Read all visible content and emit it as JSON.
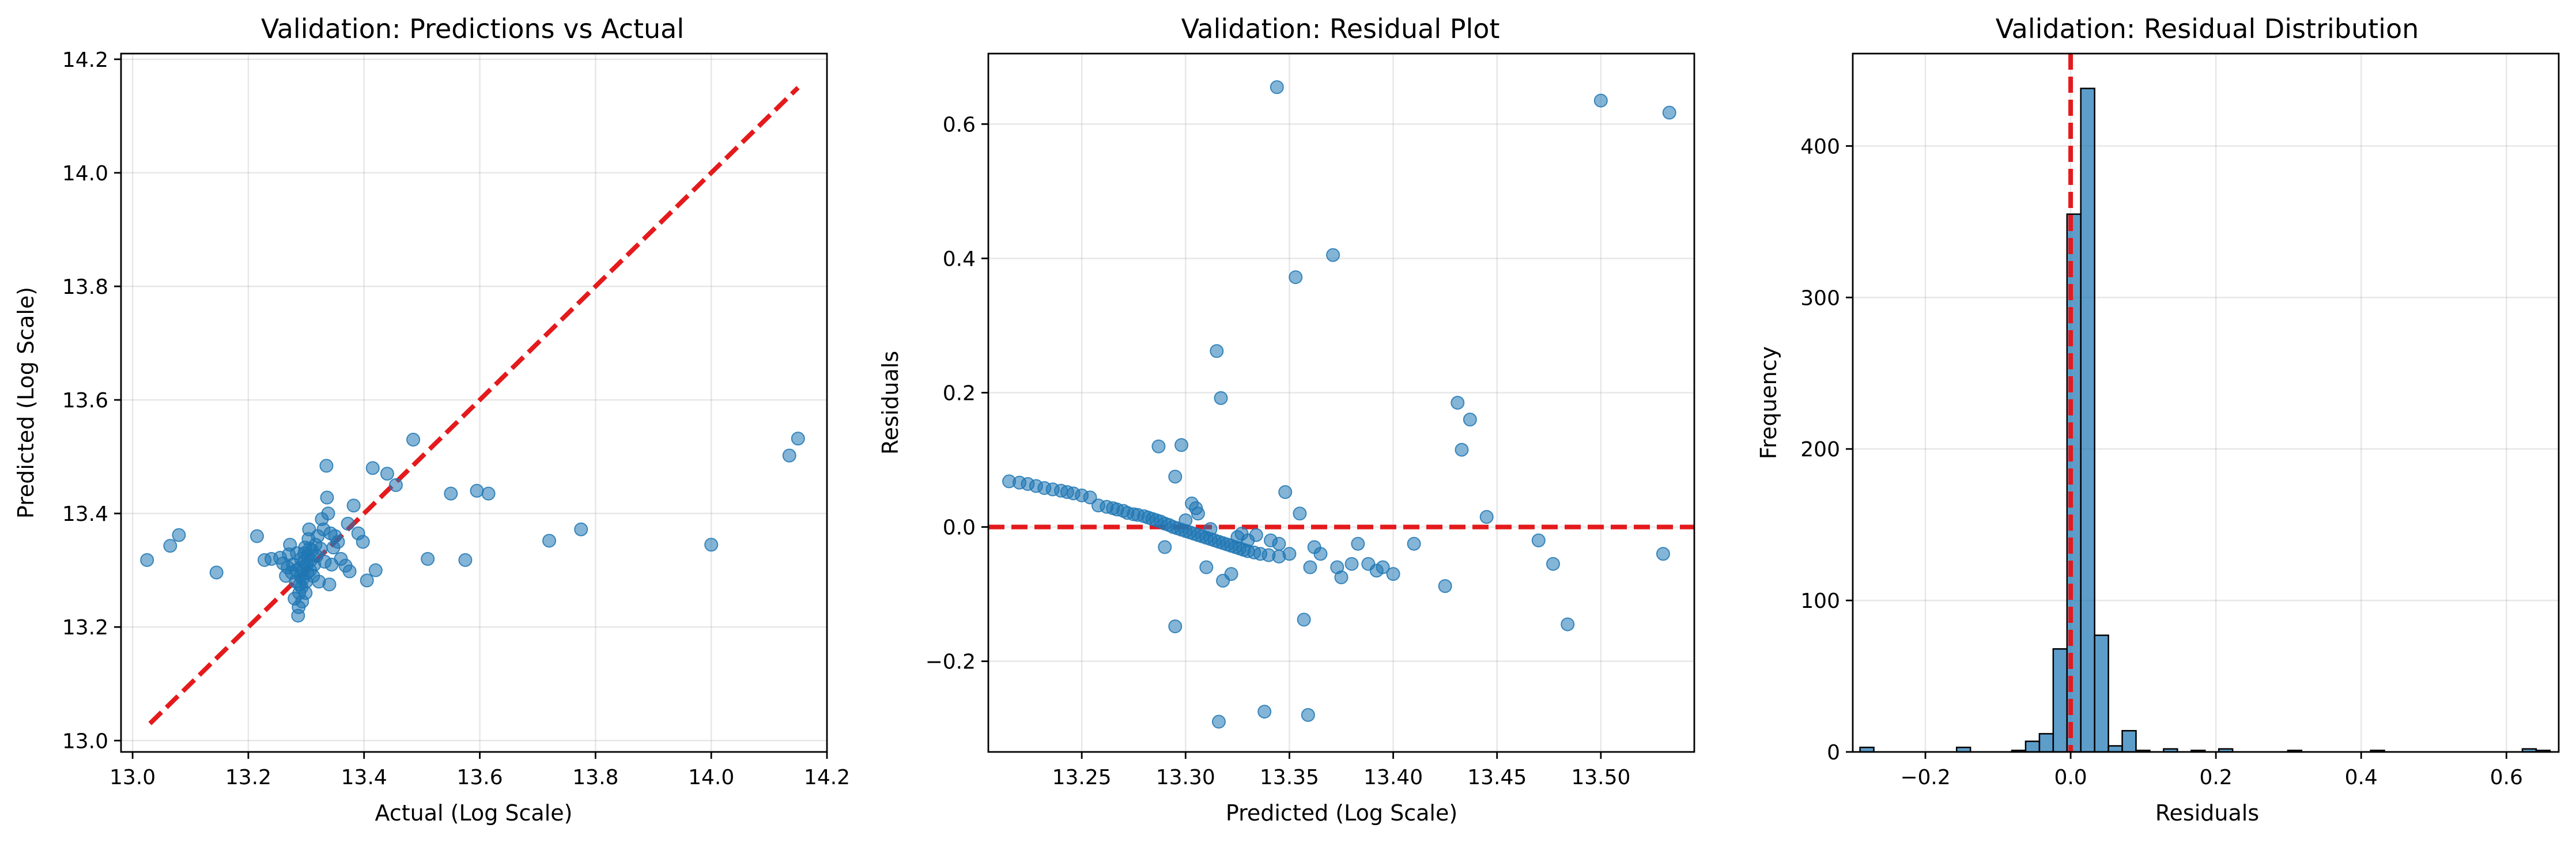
{
  "colors": {
    "points": "#1f77b4",
    "reference": "#e41a1c",
    "bars": "#1f77b4",
    "grid": "#b0b0b0"
  },
  "chart_data": [
    {
      "type": "scatter",
      "title": "Validation: Predictions vs Actual",
      "xlabel": "Actual (Log Scale)",
      "ylabel": "Predicted (Log Scale)",
      "xlim": [
        12.98,
        14.2
      ],
      "ylim": [
        12.98,
        14.21
      ],
      "xticks": [
        13.0,
        13.2,
        13.4,
        13.6,
        13.8,
        14.0,
        14.2
      ],
      "yticks": [
        13.0,
        13.2,
        13.4,
        13.6,
        13.8,
        14.0,
        14.2
      ],
      "tick_decimals": 1,
      "grid": true,
      "reference_line": {
        "style": "dashed",
        "from": [
          13.03,
          13.03
        ],
        "to": [
          14.15,
          14.15
        ]
      },
      "points": [
        [
          13.025,
          13.318
        ],
        [
          13.065,
          13.343
        ],
        [
          13.08,
          13.362
        ],
        [
          13.145,
          13.296
        ],
        [
          13.215,
          13.36
        ],
        [
          13.228,
          13.318
        ],
        [
          13.24,
          13.32
        ],
        [
          13.255,
          13.322
        ],
        [
          13.26,
          13.312
        ],
        [
          13.265,
          13.29
        ],
        [
          13.268,
          13.305
        ],
        [
          13.27,
          13.328
        ],
        [
          13.272,
          13.345
        ],
        [
          13.275,
          13.296
        ],
        [
          13.277,
          13.31
        ],
        [
          13.28,
          13.25
        ],
        [
          13.282,
          13.28
        ],
        [
          13.283,
          13.3
        ],
        [
          13.284,
          13.33
        ],
        [
          13.286,
          13.22
        ],
        [
          13.287,
          13.235
        ],
        [
          13.288,
          13.26
        ],
        [
          13.289,
          13.275
        ],
        [
          13.29,
          13.29
        ],
        [
          13.29,
          13.305
        ],
        [
          13.291,
          13.32
        ],
        [
          13.292,
          13.27
        ],
        [
          13.293,
          13.245
        ],
        [
          13.294,
          13.285
        ],
        [
          13.295,
          13.3
        ],
        [
          13.296,
          13.315
        ],
        [
          13.297,
          13.33
        ],
        [
          13.298,
          13.34
        ],
        [
          13.299,
          13.26
        ],
        [
          13.3,
          13.28
        ],
        [
          13.301,
          13.31
        ],
        [
          13.302,
          13.295
        ],
        [
          13.303,
          13.325
        ],
        [
          13.304,
          13.355
        ],
        [
          13.305,
          13.372
        ],
        [
          13.306,
          13.338
        ],
        [
          13.307,
          13.3
        ],
        [
          13.308,
          13.318
        ],
        [
          13.31,
          13.335
        ],
        [
          13.312,
          13.29
        ],
        [
          13.314,
          13.31
        ],
        [
          13.316,
          13.345
        ],
        [
          13.318,
          13.325
        ],
        [
          13.32,
          13.36
        ],
        [
          13.322,
          13.28
        ],
        [
          13.325,
          13.338
        ],
        [
          13.327,
          13.39
        ],
        [
          13.33,
          13.372
        ],
        [
          13.332,
          13.315
        ],
        [
          13.335,
          13.484
        ],
        [
          13.336,
          13.428
        ],
        [
          13.338,
          13.4
        ],
        [
          13.34,
          13.275
        ],
        [
          13.342,
          13.365
        ],
        [
          13.344,
          13.31
        ],
        [
          13.347,
          13.34
        ],
        [
          13.35,
          13.36
        ],
        [
          13.355,
          13.35
        ],
        [
          13.36,
          13.32
        ],
        [
          13.368,
          13.308
        ],
        [
          13.372,
          13.382
        ],
        [
          13.375,
          13.298
        ],
        [
          13.382,
          13.414
        ],
        [
          13.39,
          13.365
        ],
        [
          13.398,
          13.35
        ],
        [
          13.405,
          13.282
        ],
        [
          13.415,
          13.48
        ],
        [
          13.42,
          13.3
        ],
        [
          13.44,
          13.47
        ],
        [
          13.455,
          13.45
        ],
        [
          13.485,
          13.53
        ],
        [
          13.51,
          13.32
        ],
        [
          13.55,
          13.435
        ],
        [
          13.575,
          13.318
        ],
        [
          13.595,
          13.44
        ],
        [
          13.615,
          13.435
        ],
        [
          13.72,
          13.352
        ],
        [
          13.775,
          13.372
        ],
        [
          14.0,
          13.345
        ],
        [
          14.135,
          13.502
        ],
        [
          14.15,
          13.532
        ]
      ]
    },
    {
      "type": "scatter",
      "title": "Validation: Residual Plot",
      "xlabel": "Predicted (Log Scale)",
      "ylabel": "Residuals",
      "xlim": [
        13.205,
        13.545
      ],
      "ylim": [
        -0.335,
        0.705
      ],
      "xticks": [
        13.25,
        13.3,
        13.35,
        13.4,
        13.45,
        13.5
      ],
      "yticks": [
        -0.2,
        0.0,
        0.2,
        0.4,
        0.6
      ],
      "tick_decimals_x": 2,
      "tick_decimals_y": 1,
      "grid": true,
      "reference_line": {
        "style": "dashed",
        "y": 0.0
      },
      "points": [
        [
          13.215,
          0.068
        ],
        [
          13.22,
          0.066
        ],
        [
          13.224,
          0.064
        ],
        [
          13.228,
          0.061
        ],
        [
          13.232,
          0.058
        ],
        [
          13.236,
          0.056
        ],
        [
          13.24,
          0.054
        ],
        [
          13.243,
          0.052
        ],
        [
          13.246,
          0.05
        ],
        [
          13.25,
          0.047
        ],
        [
          13.254,
          0.044
        ],
        [
          13.258,
          0.032
        ],
        [
          13.262,
          0.03
        ],
        [
          13.265,
          0.028
        ],
        [
          13.267,
          0.026
        ],
        [
          13.27,
          0.024
        ],
        [
          13.272,
          0.021
        ],
        [
          13.275,
          0.019
        ],
        [
          13.277,
          0.018
        ],
        [
          13.28,
          0.016
        ],
        [
          13.282,
          0.014
        ],
        [
          13.284,
          0.012
        ],
        [
          13.286,
          0.01
        ],
        [
          13.288,
          0.008
        ],
        [
          13.29,
          0.005
        ],
        [
          13.292,
          0.003
        ],
        [
          13.294,
          0.0
        ],
        [
          13.296,
          -0.002
        ],
        [
          13.298,
          -0.004
        ],
        [
          13.3,
          -0.006
        ],
        [
          13.302,
          -0.008
        ],
        [
          13.304,
          -0.01
        ],
        [
          13.306,
          -0.012
        ],
        [
          13.308,
          -0.014
        ],
        [
          13.31,
          -0.016
        ],
        [
          13.312,
          -0.018
        ],
        [
          13.314,
          -0.02
        ],
        [
          13.316,
          -0.022
        ],
        [
          13.318,
          -0.024
        ],
        [
          13.32,
          -0.026
        ],
        [
          13.322,
          -0.028
        ],
        [
          13.324,
          -0.03
        ],
        [
          13.326,
          -0.032
        ],
        [
          13.328,
          -0.034
        ],
        [
          13.33,
          -0.036
        ],
        [
          13.333,
          -0.038
        ],
        [
          13.336,
          -0.04
        ],
        [
          13.34,
          -0.042
        ],
        [
          13.345,
          -0.044
        ],
        [
          13.35,
          -0.04
        ],
        [
          13.287,
          0.12
        ],
        [
          13.295,
          0.075
        ],
        [
          13.298,
          0.122
        ],
        [
          13.303,
          0.035
        ],
        [
          13.305,
          0.028
        ],
        [
          13.31,
          -0.06
        ],
        [
          13.315,
          0.262
        ],
        [
          13.317,
          0.192
        ],
        [
          13.29,
          -0.03
        ],
        [
          13.295,
          -0.148
        ],
        [
          13.316,
          -0.29
        ],
        [
          13.318,
          -0.08
        ],
        [
          13.322,
          -0.07
        ],
        [
          13.327,
          -0.01
        ],
        [
          13.33,
          -0.02
        ],
        [
          13.338,
          -0.275
        ],
        [
          13.341,
          -0.02
        ],
        [
          13.344,
          0.655
        ],
        [
          13.348,
          0.052
        ],
        [
          13.353,
          0.372
        ],
        [
          13.357,
          -0.138
        ],
        [
          13.359,
          -0.28
        ],
        [
          13.36,
          -0.06
        ],
        [
          13.362,
          -0.03
        ],
        [
          13.365,
          -0.04
        ],
        [
          13.371,
          0.405
        ],
        [
          13.373,
          -0.06
        ],
        [
          13.375,
          -0.075
        ],
        [
          13.38,
          -0.055
        ],
        [
          13.383,
          -0.025
        ],
        [
          13.388,
          -0.055
        ],
        [
          13.392,
          -0.065
        ],
        [
          13.395,
          -0.06
        ],
        [
          13.4,
          -0.07
        ],
        [
          13.41,
          -0.025
        ],
        [
          13.425,
          -0.088
        ],
        [
          13.431,
          0.185
        ],
        [
          13.433,
          0.115
        ],
        [
          13.437,
          0.16
        ],
        [
          13.445,
          0.015
        ],
        [
          13.47,
          -0.02
        ],
        [
          13.477,
          -0.055
        ],
        [
          13.484,
          -0.145
        ],
        [
          13.5,
          0.635
        ],
        [
          13.53,
          -0.04
        ],
        [
          13.533,
          0.617
        ],
        [
          13.355,
          0.02
        ],
        [
          13.334,
          -0.012
        ],
        [
          13.345,
          -0.025
        ],
        [
          13.306,
          0.02
        ],
        [
          13.312,
          -0.003
        ],
        [
          13.325,
          -0.015
        ],
        [
          13.3,
          0.01
        ]
      ]
    },
    {
      "type": "bar",
      "title": "Validation: Residual Distribution",
      "xlabel": "Residuals",
      "ylabel": "Frequency",
      "xlim": [
        -0.3,
        0.672
      ],
      "ylim": [
        0,
        461
      ],
      "xticks": [
        -0.2,
        0.0,
        0.2,
        0.4,
        0.6
      ],
      "yticks": [
        0,
        100,
        200,
        300,
        400
      ],
      "tick_decimals_x": 1,
      "tick_decimals_y": 0,
      "grid": true,
      "reference_line": {
        "style": "dashed",
        "x": 0.0
      },
      "bin_edges": [
        -0.29,
        -0.271,
        -0.252,
        -0.233,
        -0.214,
        -0.195,
        -0.176,
        -0.157,
        -0.138,
        -0.119,
        -0.1,
        -0.081,
        -0.062,
        -0.043,
        -0.024,
        -0.005,
        0.014,
        0.033,
        0.052,
        0.071,
        0.09,
        0.109,
        0.128,
        0.147,
        0.166,
        0.185,
        0.204,
        0.223,
        0.242,
        0.261,
        0.28,
        0.299,
        0.318,
        0.337,
        0.356,
        0.375,
        0.394,
        0.413,
        0.432,
        0.451,
        0.47,
        0.489,
        0.508,
        0.527,
        0.546,
        0.565,
        0.584,
        0.603,
        0.622,
        0.641,
        0.66
      ],
      "values": [
        3,
        0,
        0,
        0,
        0,
        0,
        0,
        3,
        0,
        0,
        0,
        1,
        7,
        12,
        68,
        355,
        438,
        77,
        4,
        14,
        1,
        0,
        2,
        0,
        1,
        0,
        2,
        0,
        0,
        0,
        0,
        1,
        0,
        0,
        0,
        0,
        0,
        1,
        0,
        0,
        0,
        0,
        0,
        0,
        0,
        0,
        0,
        0,
        2,
        1
      ]
    }
  ]
}
